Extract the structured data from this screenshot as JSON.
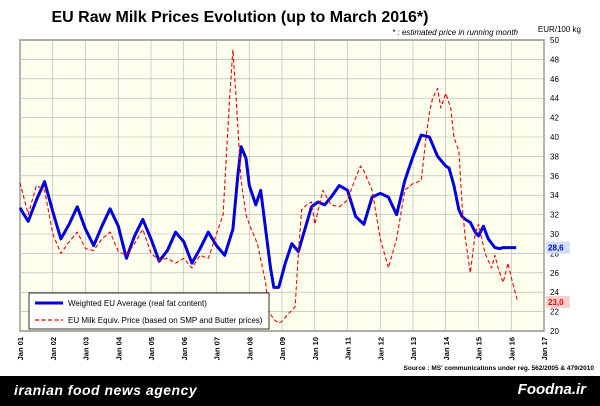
{
  "chart_data": {
    "type": "line",
    "title": "EU Raw Milk Prices Evolution (up to  March 2016*)",
    "subtitle": "* : estimated price in running month",
    "ylabel": "EUR/100 kg",
    "ylim": [
      20,
      50
    ],
    "yticks": [
      20,
      22,
      24,
      26,
      28,
      30,
      32,
      34,
      36,
      38,
      40,
      42,
      44,
      46,
      48,
      50
    ],
    "xlim": [
      2001,
      2017
    ],
    "xticks": [
      "Jan 01",
      "Jan 02",
      "Jan 03",
      "Jan 04",
      "Jan 05",
      "Jan 06",
      "Jan 07",
      "Jan 08",
      "Jan 09",
      "Jan 10",
      "Jan 11",
      "Jan 12",
      "Jan 13",
      "Jan 14",
      "Jan 15",
      "Jan 16",
      "Jan 17"
    ],
    "grid": true,
    "legend_position": "bottom-left",
    "source": "Source : MS' communications under reg. 562/2005 & 479/2010",
    "series": [
      {
        "name": "Weighted EU Average (real fat content)",
        "color": "#0000dd",
        "style": "solid",
        "end_label": "28,6",
        "x": [
          2001.0,
          2001.25,
          2001.5,
          2001.75,
          2002.0,
          2002.25,
          2002.5,
          2002.75,
          2003.0,
          2003.25,
          2003.5,
          2003.75,
          2004.0,
          2004.25,
          2004.5,
          2004.75,
          2005.0,
          2005.25,
          2005.5,
          2005.75,
          2006.0,
          2006.25,
          2006.5,
          2006.75,
          2007.0,
          2007.25,
          2007.5,
          2007.65,
          2007.75,
          2007.9,
          2008.0,
          2008.2,
          2008.35,
          2008.5,
          2008.65,
          2008.75,
          2008.9,
          2009.1,
          2009.3,
          2009.5,
          2009.7,
          2009.9,
          2010.1,
          2010.3,
          2010.5,
          2010.75,
          2011.0,
          2011.25,
          2011.5,
          2011.75,
          2012.0,
          2012.25,
          2012.5,
          2012.75,
          2013.0,
          2013.25,
          2013.5,
          2013.75,
          2014.0,
          2014.1,
          2014.25,
          2014.4,
          2014.5,
          2014.6,
          2014.75,
          2014.9,
          2015.0,
          2015.15,
          2015.3,
          2015.5,
          2015.65,
          2015.75,
          2015.85,
          2016.0,
          2016.15
        ],
        "values": [
          32.7,
          31.3,
          33.5,
          35.4,
          32.3,
          29.5,
          31.0,
          32.8,
          30.5,
          28.8,
          30.8,
          32.6,
          30.8,
          27.5,
          29.8,
          31.5,
          29.5,
          27.2,
          28.3,
          30.2,
          29.2,
          27.0,
          28.5,
          30.2,
          28.8,
          27.8,
          30.5,
          36.0,
          39.0,
          37.8,
          35.0,
          33.0,
          34.5,
          30.5,
          26.5,
          24.5,
          24.5,
          27.0,
          29.0,
          28.2,
          30.5,
          32.8,
          33.3,
          33.0,
          33.8,
          35.0,
          34.5,
          31.8,
          31.0,
          33.8,
          34.2,
          33.8,
          32.0,
          35.5,
          38.0,
          40.2,
          40.0,
          38.0,
          37.0,
          36.8,
          35.0,
          32.5,
          31.8,
          31.5,
          31.2,
          30.2,
          29.8,
          30.8,
          29.5,
          28.6,
          28.5,
          28.6,
          28.6,
          28.6,
          28.6
        ]
      },
      {
        "name": "EU Milk Equiv. Price (based on SMP and Butter prices)",
        "color": "#ee0000",
        "style": "dashed",
        "end_label": "23,0",
        "x": [
          2001.0,
          2001.25,
          2001.5,
          2001.75,
          2002.0,
          2002.25,
          2002.5,
          2002.75,
          2003.0,
          2003.25,
          2003.5,
          2003.75,
          2004.0,
          2004.25,
          2004.5,
          2004.75,
          2005.0,
          2005.25,
          2005.5,
          2005.75,
          2006.0,
          2006.25,
          2006.5,
          2006.75,
          2007.0,
          2007.2,
          2007.4,
          2007.5,
          2007.6,
          2007.75,
          2007.9,
          2008.0,
          2008.25,
          2008.5,
          2008.6,
          2008.75,
          2008.9,
          2009.0,
          2009.2,
          2009.4,
          2009.5,
          2009.6,
          2009.75,
          2009.9,
          2010.0,
          2010.25,
          2010.5,
          2010.75,
          2011.0,
          2011.25,
          2011.4,
          2011.5,
          2011.75,
          2012.0,
          2012.25,
          2012.5,
          2012.75,
          2013.0,
          2013.25,
          2013.4,
          2013.5,
          2013.6,
          2013.75,
          2013.85,
          2014.0,
          2014.15,
          2014.25,
          2014.4,
          2014.5,
          2014.6,
          2014.75,
          2014.9,
          2015.0,
          2015.2,
          2015.4,
          2015.5,
          2015.6,
          2015.75,
          2015.9,
          2016.0,
          2016.2
        ],
        "values": [
          35.3,
          32.0,
          35.0,
          34.5,
          30.0,
          28.0,
          29.2,
          30.2,
          28.5,
          28.3,
          29.5,
          30.2,
          28.2,
          27.8,
          29.0,
          30.5,
          28.0,
          27.3,
          27.5,
          27.0,
          27.5,
          26.5,
          27.8,
          27.5,
          30.0,
          32.0,
          44.0,
          49.0,
          44.0,
          35.5,
          32.0,
          31.0,
          29.0,
          25.0,
          22.0,
          21.2,
          20.8,
          21.0,
          21.8,
          22.5,
          28.0,
          32.5,
          33.0,
          33.3,
          31.0,
          34.5,
          33.0,
          32.8,
          33.5,
          35.8,
          37.0,
          36.5,
          34.5,
          29.5,
          26.5,
          29.5,
          34.5,
          35.2,
          35.5,
          40.0,
          42.5,
          44.0,
          45.0,
          43.0,
          44.5,
          43.0,
          40.0,
          38.5,
          33.0,
          29.5,
          26.0,
          30.0,
          31.0,
          28.0,
          26.5,
          27.8,
          26.5,
          25.0,
          27.0,
          25.5,
          23.0
        ]
      }
    ]
  },
  "footer": {
    "left": "iranian food news agency",
    "right": "Foodna.ir"
  }
}
